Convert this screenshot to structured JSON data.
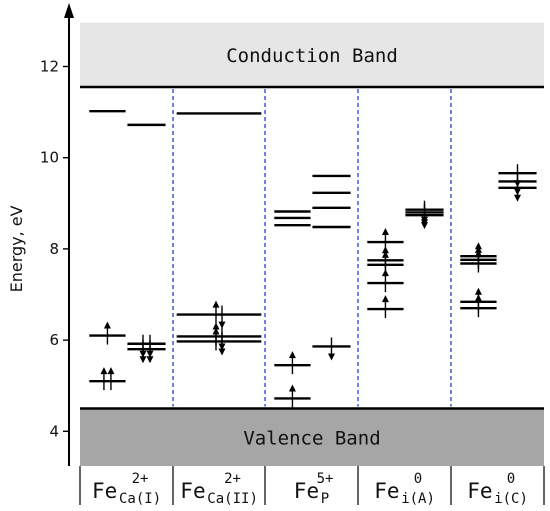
{
  "chart_data": {
    "type": "energy-level-diagram",
    "ylabel": "Energy, eV",
    "ylim": [
      3.3,
      13.4
    ],
    "yticks": [
      4,
      6,
      8,
      10,
      12
    ],
    "conduction_band": {
      "label": "Conduction Band",
      "from": 11.55,
      "to": 12.95,
      "color": "#e6e6e6"
    },
    "valence_band": {
      "label": "Valence Band",
      "from": 3.3,
      "to": 4.5,
      "color": "#a6a6a6"
    },
    "divider_color": "#1f3fd6",
    "columns": [
      {
        "label": "Fe",
        "sup": "2+",
        "sub": "Ca(I)",
        "levels": [
          {
            "spin": "up",
            "energy": 11.02,
            "occupancy": 0
          },
          {
            "spin": "up",
            "energy": 6.1,
            "occupancy": 1
          },
          {
            "spin": "up",
            "energy": 5.1,
            "occupancy": 2
          },
          {
            "spin": "down",
            "energy": 10.72,
            "occupancy": 0
          },
          {
            "spin": "down",
            "energy": 5.92,
            "occupancy": 2
          },
          {
            "spin": "down",
            "energy": 5.8,
            "occupancy": 2
          }
        ]
      },
      {
        "label": "Fe",
        "sup": "2+",
        "sub": "Ca(II)",
        "levels": [
          {
            "spin": "both",
            "energy": 10.97,
            "occupancy": 0
          },
          {
            "spin": "both",
            "energy": 6.56,
            "occupancy": 2
          },
          {
            "spin": "both",
            "energy": 6.08,
            "occupancy": 2
          },
          {
            "spin": "both",
            "energy": 5.97,
            "occupancy": 2
          }
        ]
      },
      {
        "label": "Fe",
        "sup": "5+",
        "sub": "P",
        "levels": [
          {
            "spin": "up",
            "energy": 8.82,
            "occupancy": 0
          },
          {
            "spin": "up",
            "energy": 8.68,
            "occupancy": 0
          },
          {
            "spin": "up",
            "energy": 8.52,
            "occupancy": 0
          },
          {
            "spin": "up",
            "energy": 5.45,
            "occupancy": 1
          },
          {
            "spin": "up",
            "energy": 4.72,
            "occupancy": 1
          },
          {
            "spin": "down",
            "energy": 9.6,
            "occupancy": 0
          },
          {
            "spin": "down",
            "energy": 9.23,
            "occupancy": 0
          },
          {
            "spin": "down",
            "energy": 8.9,
            "occupancy": 0
          },
          {
            "spin": "down",
            "energy": 8.48,
            "occupancy": 0
          },
          {
            "spin": "down",
            "energy": 5.86,
            "occupancy": 1
          }
        ]
      },
      {
        "label": "Fe",
        "sup": "0",
        "sub": "i(A)",
        "levels": [
          {
            "spin": "up",
            "energy": 8.15,
            "occupancy": 1
          },
          {
            "spin": "up",
            "energy": 7.75,
            "occupancy": 1
          },
          {
            "spin": "up",
            "energy": 7.65,
            "occupancy": 1
          },
          {
            "spin": "up",
            "energy": 7.25,
            "occupancy": 1
          },
          {
            "spin": "up",
            "energy": 6.68,
            "occupancy": 1
          },
          {
            "spin": "down",
            "energy": 8.86,
            "occupancy": 1
          },
          {
            "spin": "down",
            "energy": 8.8,
            "occupancy": 1
          },
          {
            "spin": "down",
            "energy": 8.74,
            "occupancy": 1
          }
        ]
      },
      {
        "label": "Fe",
        "sup": "0",
        "sub": "i(C)",
        "levels": [
          {
            "spin": "up",
            "energy": 7.84,
            "occupancy": 1
          },
          {
            "spin": "up",
            "energy": 7.76,
            "occupancy": 1
          },
          {
            "spin": "up",
            "energy": 7.68,
            "occupancy": 1
          },
          {
            "spin": "up",
            "energy": 6.84,
            "occupancy": 1
          },
          {
            "spin": "up",
            "energy": 6.7,
            "occupancy": 1
          },
          {
            "spin": "down",
            "energy": 9.66,
            "occupancy": 1
          },
          {
            "spin": "down",
            "energy": 9.48,
            "occupancy": 1
          },
          {
            "spin": "down",
            "energy": 9.34,
            "occupancy": 1
          }
        ]
      }
    ]
  }
}
